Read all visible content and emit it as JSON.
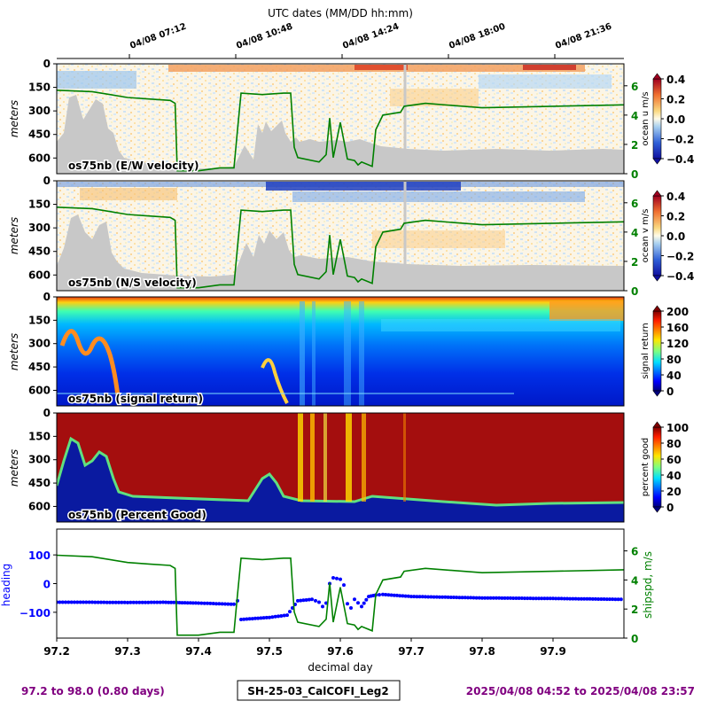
{
  "title": "UTC dates (MM/DD hh:mm)",
  "top_ticks": [
    "04/08 07:12",
    "04/08 10:48",
    "04/08 14:24",
    "04/08 18:00",
    "04/08 21:36"
  ],
  "xlabel": "decimal day",
  "x_ticks": [
    "97.2",
    "97.3",
    "97.4",
    "97.5",
    "97.6",
    "97.7",
    "97.8",
    "97.9"
  ],
  "depth_ticks": [
    "0",
    "150",
    "300",
    "450",
    "600"
  ],
  "depth_label": "meters",
  "footer": {
    "range": "97.2 to 98.0 (0.80 days)",
    "cruise": "SH-25-03_CalCOFI_Leg2",
    "dates": "2025/04/08 04:52 to 2025/04/08 23:57"
  },
  "colors": {
    "ship_speed": "#008000",
    "heading": "#0000ff",
    "footer_text": "#800080",
    "bottom_mask": "#c8c8c8"
  },
  "chart_data": [
    {
      "type": "heatmap",
      "label": "os75nb (E/W velocity)",
      "colorbar_label": "ocean u m/s",
      "colorbar_ticks": [
        "0.4",
        "0.2",
        "0.0",
        "−0.2",
        "−0.4"
      ],
      "colormap": "RdYlBu_r",
      "value_range": [
        -0.4,
        0.4
      ],
      "ylim": [
        700,
        0
      ],
      "right_axis_ticks": [
        "6",
        "4",
        "2",
        "0"
      ],
      "overlay": "ship speed (m/s)"
    },
    {
      "type": "heatmap",
      "label": "os75nb (N/S velocity)",
      "colorbar_label": "ocean v m/s",
      "colorbar_ticks": [
        "0.4",
        "0.2",
        "0.0",
        "−0.2",
        "−0.4"
      ],
      "colormap": "RdYlBu_r",
      "value_range": [
        -0.4,
        0.4
      ],
      "ylim": [
        700,
        0
      ],
      "right_axis_ticks": [
        "6",
        "4",
        "2",
        "0"
      ],
      "overlay": "ship speed (m/s)"
    },
    {
      "type": "heatmap",
      "label": "os75nb (signal return)",
      "colorbar_label": "signal return",
      "colorbar_ticks": [
        "200",
        "160",
        "120",
        "80",
        "40",
        "0"
      ],
      "colormap": "jet",
      "value_range": [
        0,
        200
      ],
      "ylim": [
        700,
        0
      ]
    },
    {
      "type": "heatmap",
      "label": "os75nb (Percent Good)",
      "colorbar_label": "percent good",
      "colorbar_ticks": [
        "100",
        "80",
        "60",
        "40",
        "20",
        "0"
      ],
      "colormap": "jet",
      "value_range": [
        0,
        100
      ],
      "ylim": [
        700,
        0
      ]
    },
    {
      "type": "line",
      "xlim": [
        97.2,
        98.0
      ],
      "left_axis": {
        "label": "heading",
        "ticks": [
          "100",
          "0",
          "−100"
        ],
        "ylim": [
          -190,
          190
        ]
      },
      "right_axis": {
        "label": "shipspd, m/s",
        "ticks": [
          "6",
          "4",
          "2",
          "0"
        ],
        "ylim": [
          0,
          7.5
        ]
      },
      "series": [
        {
          "name": "shipspd, m/s",
          "style": "line",
          "x": [
            97.2,
            97.25,
            97.3,
            97.33,
            97.36,
            97.367,
            97.37,
            97.4,
            97.43,
            97.45,
            97.455,
            97.46,
            97.49,
            97.52,
            97.53,
            97.535,
            97.54,
            97.57,
            97.58,
            97.585,
            97.59,
            97.6,
            97.61,
            97.62,
            97.625,
            97.63,
            97.645,
            97.65,
            97.66,
            97.685,
            97.69,
            97.72,
            97.8,
            97.9,
            98.0
          ],
          "y": [
            5.7,
            5.6,
            5.2,
            5.1,
            5.0,
            4.8,
            0.2,
            0.2,
            0.4,
            0.4,
            3.0,
            5.5,
            5.4,
            5.5,
            5.5,
            1.8,
            1.1,
            0.8,
            1.3,
            3.8,
            1.1,
            3.5,
            1.0,
            0.9,
            0.6,
            0.8,
            0.5,
            3.0,
            4.0,
            4.2,
            4.6,
            4.8,
            4.5,
            4.6,
            4.7
          ]
        },
        {
          "name": "heading",
          "style": "markers",
          "x": [
            97.2,
            97.25,
            97.3,
            97.35,
            97.4,
            97.45,
            97.455,
            97.46,
            97.5,
            97.525,
            97.54,
            97.56,
            97.57,
            97.575,
            97.58,
            97.585,
            97.59,
            97.6,
            97.605,
            97.61,
            97.615,
            97.62,
            97.63,
            97.64,
            97.65,
            97.66,
            97.7,
            97.8,
            97.9,
            98.0
          ],
          "y": [
            -65,
            -65,
            -66,
            -65,
            -68,
            -72,
            -60,
            -125,
            -118,
            -110,
            -60,
            -55,
            -65,
            -80,
            -68,
            0,
            20,
            15,
            -5,
            -70,
            -85,
            -55,
            -80,
            -45,
            -40,
            -38,
            -45,
            -50,
            -52,
            -55
          ]
        }
      ]
    }
  ]
}
